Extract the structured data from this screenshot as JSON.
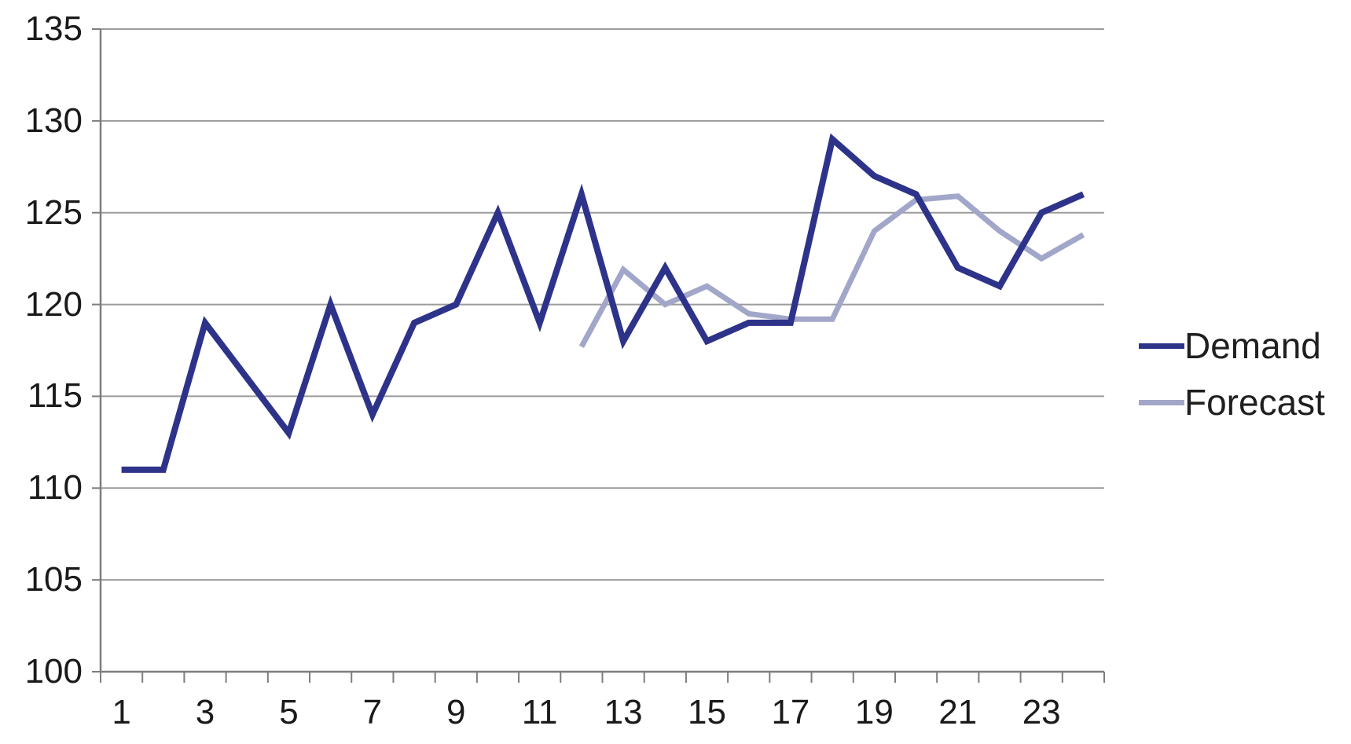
{
  "chart_data": {
    "type": "line",
    "title": "",
    "xlabel": "",
    "ylabel": "",
    "x_categories": [
      1,
      2,
      3,
      4,
      5,
      6,
      7,
      8,
      9,
      10,
      11,
      12,
      13,
      14,
      15,
      16,
      17,
      18,
      19,
      20,
      21,
      22,
      23,
      24
    ],
    "x_tick_labels": [
      "1",
      "3",
      "5",
      "7",
      "9",
      "11",
      "13",
      "15",
      "17",
      "19",
      "21",
      "23"
    ],
    "x_label_interval": 2,
    "y_ticks": [
      135,
      130,
      125,
      120,
      115,
      110,
      105,
      100
    ],
    "ylim": [
      100,
      135
    ],
    "y_tick_step": 5,
    "grid": "horizontal",
    "legend_position": "right",
    "series": [
      {
        "name": "Demand",
        "color": "#2e338a",
        "stroke_width": 8,
        "values": [
          111,
          111,
          119,
          116,
          113,
          120,
          114,
          119,
          120,
          125,
          119,
          126,
          118,
          122,
          118,
          119,
          119,
          129,
          127,
          126,
          122,
          121,
          125,
          126
        ]
      },
      {
        "name": "Forecast",
        "color": "#a2a6c8",
        "stroke_width": 7,
        "values": [
          null,
          null,
          null,
          null,
          null,
          null,
          null,
          null,
          null,
          null,
          null,
          117.7,
          121.9,
          120,
          121,
          119.5,
          119.2,
          119.2,
          124,
          125.7,
          125.9,
          124,
          122.5,
          123.8
        ]
      }
    ]
  },
  "colors": {
    "grid": "#9b9b9b",
    "axis": "#7d7d7d",
    "tick_text": "#1a1a1a",
    "background": "#ffffff"
  },
  "legend": {
    "items": [
      {
        "label": "Demand"
      },
      {
        "label": "Forecast"
      }
    ]
  }
}
